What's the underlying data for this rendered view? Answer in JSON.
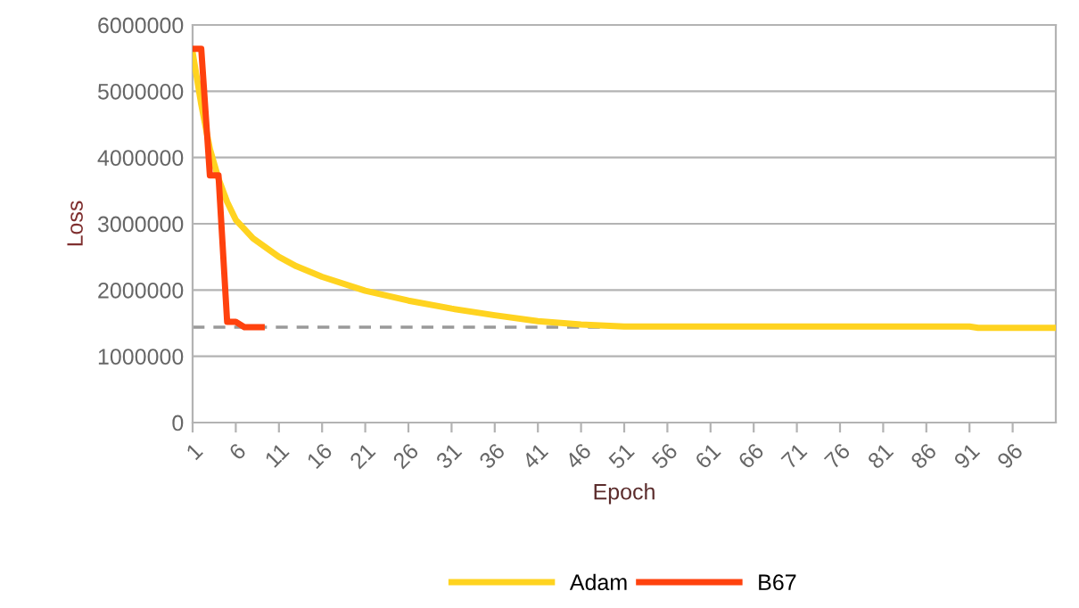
{
  "chart_data": {
    "type": "line",
    "xlabel": "Epoch",
    "ylabel": "Loss",
    "xlim": [
      1,
      101
    ],
    "xticks": [
      1,
      6,
      11,
      16,
      21,
      26,
      31,
      36,
      41,
      46,
      51,
      56,
      61,
      66,
      71,
      76,
      81,
      86,
      91,
      96
    ],
    "ylim": [
      0,
      6000000
    ],
    "yticks": [
      0,
      1000000,
      2000000,
      3000000,
      4000000,
      5000000,
      6000000
    ],
    "grid": "y",
    "legend": "bottom",
    "marker": "none",
    "line_style": "solid",
    "series": [
      {
        "name": "Adam",
        "color": "#ffd320",
        "x": [
          1,
          2,
          3,
          4,
          5,
          6,
          8,
          11,
          13,
          16,
          21,
          26,
          31,
          36,
          41,
          46,
          51,
          91,
          92,
          101
        ],
        "values": [
          5590000,
          4800000,
          4130000,
          3680000,
          3330000,
          3060000,
          2780000,
          2500000,
          2360000,
          2200000,
          1990000,
          1840000,
          1720000,
          1620000,
          1530000,
          1480000,
          1450000,
          1450000,
          1430000,
          1430000
        ]
      },
      {
        "name": "B67",
        "color": "#ff420e",
        "x": [
          1,
          2,
          3,
          4,
          5,
          6,
          7,
          8,
          9
        ],
        "values": [
          5640000,
          5640000,
          3730000,
          3730000,
          1520000,
          1520000,
          1440000,
          1440000,
          1440000
        ]
      }
    ],
    "ref_lines": [
      {
        "axis": "y",
        "value": 1440000,
        "color": "#999999",
        "line_style": "dashed"
      }
    ]
  }
}
